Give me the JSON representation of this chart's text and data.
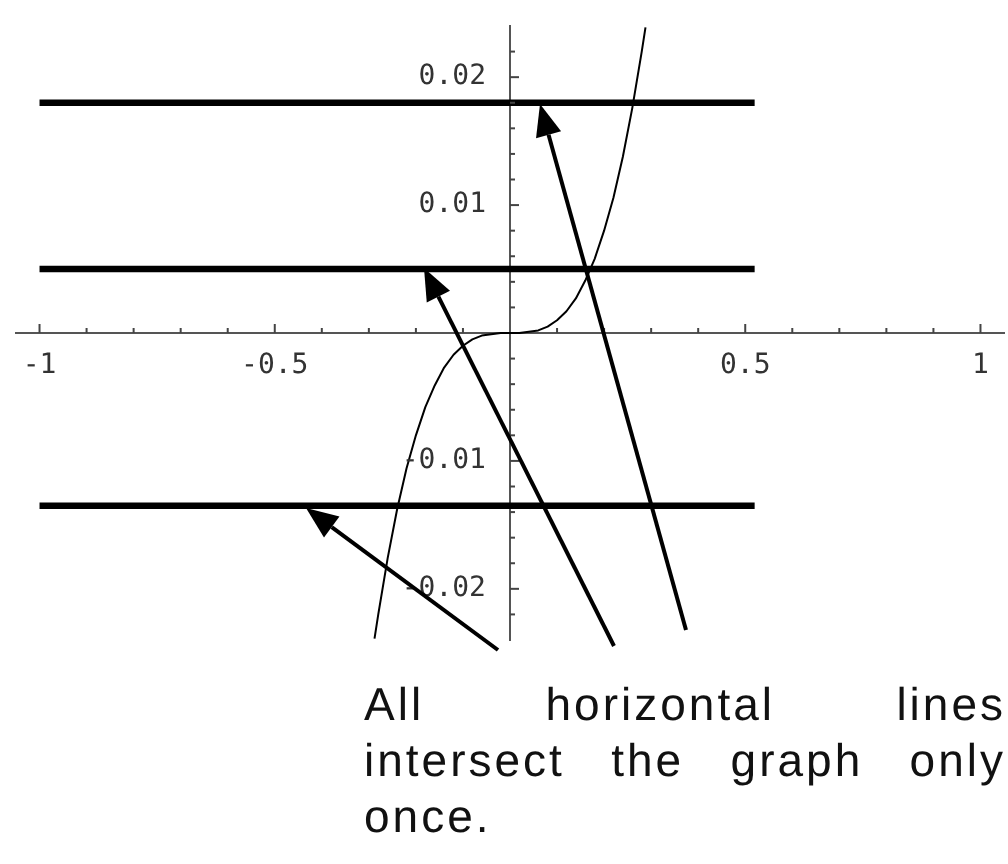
{
  "chart_data": {
    "type": "line",
    "annotations": [
      "All horizontal lines intersect the graph only once."
    ],
    "xlim": [
      -1.05,
      1.05
    ],
    "ylim": [
      -0.024,
      0.024
    ],
    "xticks": [
      -1,
      {
        "value": -0.9,
        "label": null
      },
      {
        "value": -0.8,
        "label": null
      },
      {
        "value": -0.7,
        "label": null
      },
      {
        "value": -0.6,
        "label": null
      },
      -0.5,
      {
        "value": -0.4,
        "label": null
      },
      {
        "value": -0.3,
        "label": null
      },
      {
        "value": -0.2,
        "label": null
      },
      {
        "value": -0.1,
        "label": null
      },
      {
        "value": 0.1,
        "label": null
      },
      {
        "value": 0.2,
        "label": null
      },
      {
        "value": 0.3,
        "label": null
      },
      {
        "value": 0.4,
        "label": null
      },
      0.5,
      {
        "value": 0.6,
        "label": null
      },
      {
        "value": 0.7,
        "label": null
      },
      {
        "value": 0.8,
        "label": null
      },
      {
        "value": 0.9,
        "label": null
      },
      1
    ],
    "yticks": [
      {
        "value": -0.022,
        "label": null
      },
      -0.02,
      {
        "value": -0.018,
        "label": null
      },
      {
        "value": -0.016,
        "label": null
      },
      {
        "value": -0.014,
        "label": null
      },
      {
        "value": -0.012,
        "label": null
      },
      -0.01,
      {
        "value": -0.008,
        "label": null
      },
      {
        "value": -0.006,
        "label": null
      },
      {
        "value": -0.004,
        "label": null
      },
      {
        "value": -0.002,
        "label": null
      },
      {
        "value": 0.002,
        "label": null
      },
      {
        "value": 0.004,
        "label": null
      },
      {
        "value": 0.006,
        "label": null
      },
      {
        "value": 0.008,
        "label": null
      },
      0.01,
      {
        "value": 0.012,
        "label": null
      },
      {
        "value": 0.014,
        "label": null
      },
      {
        "value": 0.016,
        "label": null
      },
      {
        "value": 0.018,
        "label": null
      },
      0.02,
      {
        "value": 0.022,
        "label": null
      }
    ],
    "marker": "none",
    "line_style": "solid",
    "series": [
      {
        "color": "#000000",
        "x": [
          -0.288,
          -0.28,
          -0.26,
          -0.24,
          -0.22,
          -0.2,
          -0.18,
          -0.16,
          -0.14,
          -0.12,
          -0.1,
          -0.08,
          -0.06,
          -0.04,
          -0.02,
          0,
          0.02,
          0.04,
          0.06,
          0.08,
          0.1,
          0.12,
          0.14,
          0.16,
          0.18,
          0.2,
          0.22,
          0.24,
          0.26,
          0.28,
          0.288
        ],
        "values": [
          -0.0239,
          -0.022,
          -0.0176,
          -0.0138,
          -0.0106,
          -0.008,
          -0.0058,
          -0.0041,
          -0.0027,
          -0.0017,
          -0.001,
          -0.0005,
          -0.0002,
          -0.0001,
          0,
          0,
          0,
          0.0001,
          0.0002,
          0.0005,
          0.001,
          0.0017,
          0.0027,
          0.0041,
          0.0058,
          0.008,
          0.0106,
          0.0138,
          0.0176,
          0.022,
          0.0239
        ]
      },
      {
        "color": "#000000",
        "x": [
          -1,
          0.52
        ],
        "values": [
          0.018,
          0.018
        ]
      },
      {
        "color": "#000000",
        "x": [
          -1,
          0.52
        ],
        "values": [
          0.005,
          0.005
        ]
      },
      {
        "color": "#000000",
        "x": [
          -1,
          0.52
        ],
        "values": [
          -0.0135,
          -0.0135
        ]
      }
    ]
  }
}
